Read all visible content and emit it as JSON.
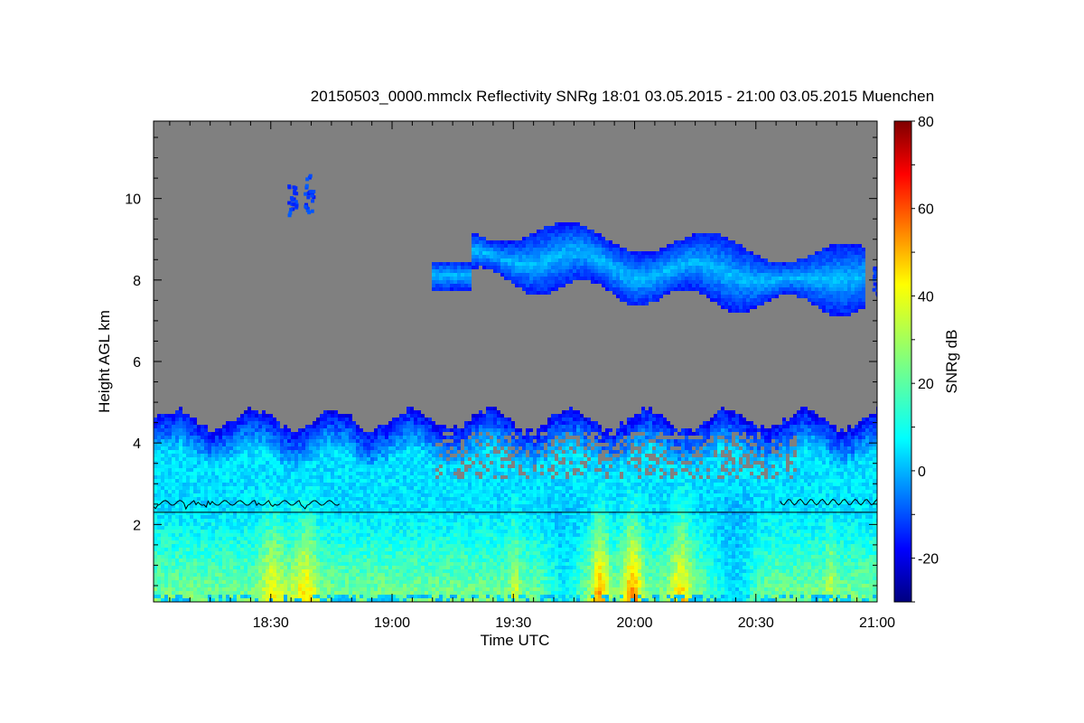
{
  "chart_data": {
    "type": "heatmap",
    "title": "20150503_0000.mmclx Reflectivity SNRg   18:01 03.05.2015 - 21:00 03.05.2015 Muenchen",
    "xlabel": "Time UTC",
    "ylabel": "Height AGL km",
    "colorbar_label": "SNRg dB",
    "x_range_minutes_utc": [
      1081,
      1260
    ],
    "y_range_km": [
      0.1,
      11.9
    ],
    "x_ticks": [
      {
        "label": "18:30",
        "value": 1110
      },
      {
        "label": "19:00",
        "value": 1140
      },
      {
        "label": "19:30",
        "value": 1170
      },
      {
        "label": "20:00",
        "value": 1200
      },
      {
        "label": "20:30",
        "value": 1230
      },
      {
        "label": "21:00",
        "value": 1260
      }
    ],
    "y_ticks": [
      {
        "label": "2",
        "value": 2
      },
      {
        "label": "4",
        "value": 4
      },
      {
        "label": "6",
        "value": 6
      },
      {
        "label": "8",
        "value": 8
      },
      {
        "label": "10",
        "value": 10
      }
    ],
    "colorbar_range_db": [
      -30,
      80
    ],
    "colorbar_ticks": [
      {
        "label": "-20",
        "value": -20
      },
      {
        "label": "0",
        "value": 0
      },
      {
        "label": "20",
        "value": 20
      },
      {
        "label": "40",
        "value": 40
      },
      {
        "label": "60",
        "value": 60
      },
      {
        "label": "80",
        "value": 80
      }
    ],
    "background_color": "#808080",
    "features": {
      "low_layer_top_km": 4.7,
      "horizontal_line_km": 2.3,
      "upper_cloud": {
        "start": 1149,
        "end": 1260,
        "base_km": 7.4,
        "top_km": 9.4
      }
    }
  }
}
